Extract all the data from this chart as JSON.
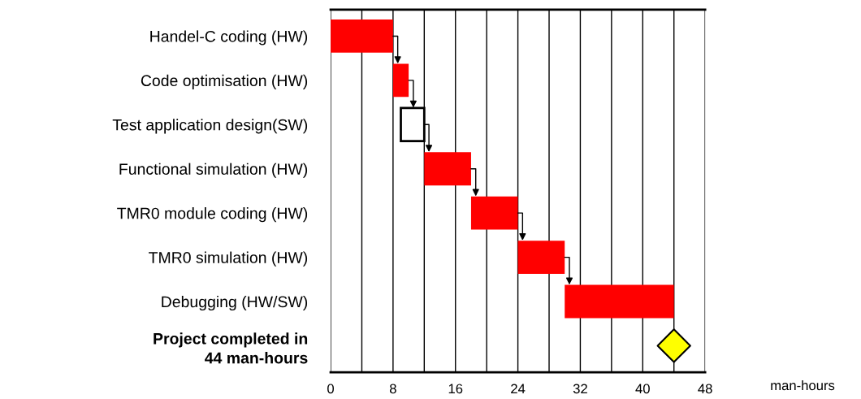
{
  "chart_data": {
    "type": "bar",
    "orientation": "horizontal",
    "xlabel": "man-hours",
    "categories": [
      "Handel-C coding (HW)",
      "Code optimisation (HW)",
      "Test application design(SW)",
      "Functional simulation (HW)",
      "TMR0 module coding (HW)",
      "TMR0 simulation (HW)",
      "Debugging (HW/SW)",
      "Project completed in\n44 man-hours"
    ],
    "series": [
      {
        "base": [
          0,
          8,
          9,
          12,
          18,
          24,
          30,
          null
        ],
        "values": [
          8,
          2,
          3,
          6,
          6,
          6,
          14,
          null
        ],
        "colors": [
          "#ff0000",
          "#ff0000",
          "#ffffff",
          "#ff0000",
          "#ff0000",
          "#ff0000",
          "#ff0000",
          null
        ]
      },
      {
        "type": "scatter",
        "marker": "diamond",
        "color": "#ffff00",
        "values": [
          null,
          null,
          null,
          null,
          null,
          null,
          null,
          44
        ]
      }
    ],
    "xlim": [
      0,
      48
    ],
    "xticks": [
      0,
      {
        "value": 4,
        "label": null
      },
      8,
      {
        "value": 12,
        "label": null
      },
      16,
      {
        "value": 20,
        "label": null
      },
      24,
      {
        "value": 28,
        "label": null
      },
      32,
      {
        "value": 36,
        "label": null
      },
      40,
      {
        "value": 44,
        "label": null
      },
      48
    ],
    "grid": "x",
    "legend": false
  }
}
